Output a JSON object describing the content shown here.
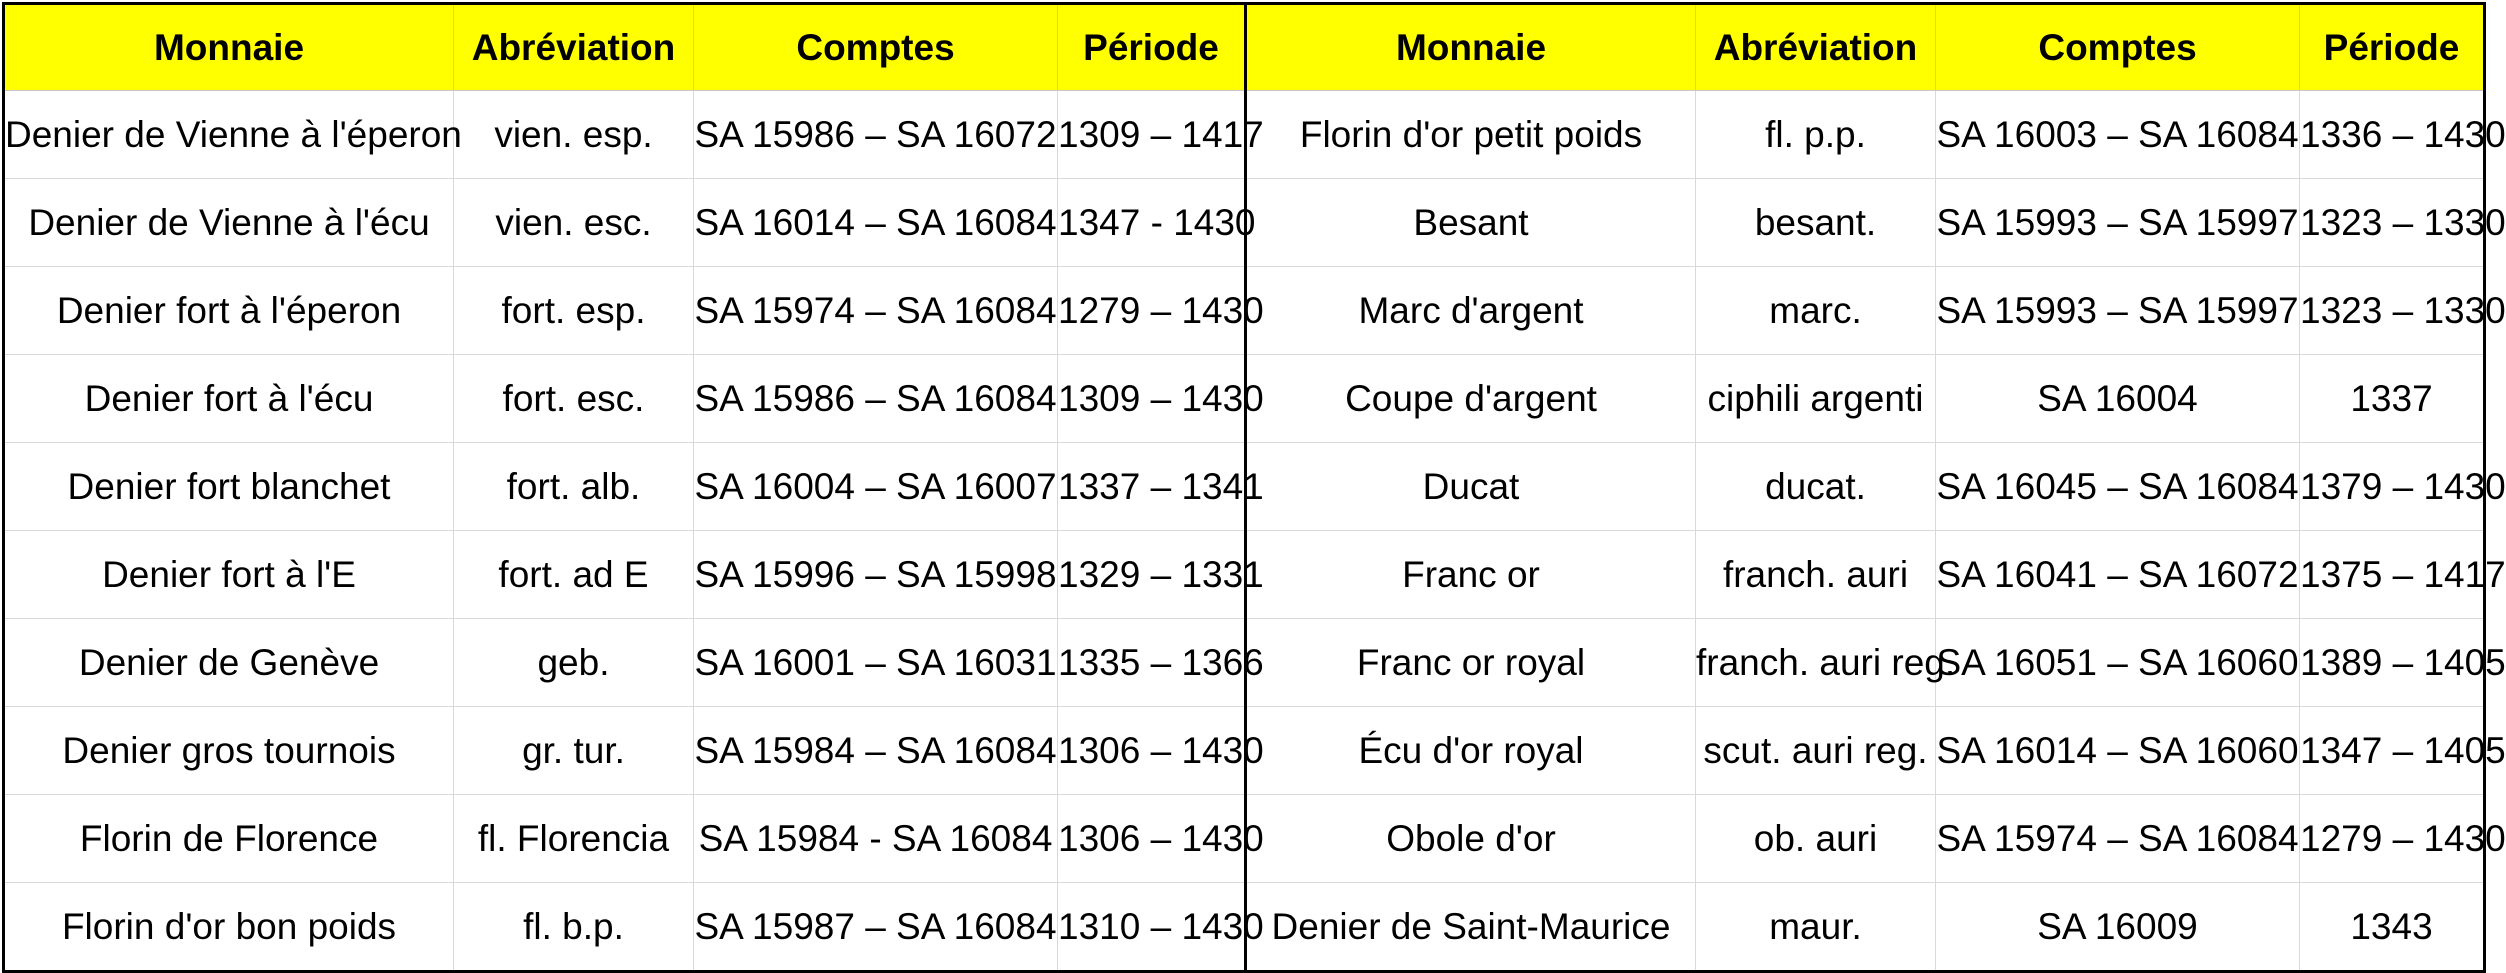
{
  "header_color": "#ffff00",
  "headers": [
    "Monnaie",
    "Abréviation",
    "Comptes",
    "Période",
    "Monnaie",
    "Abréviation",
    "Comptes",
    "Période"
  ],
  "rows": [
    [
      "Denier de Vienne à l'éperon",
      "vien. esp.",
      "SA 15986 – SA 16072",
      "1309 – 1417",
      "Florin d'or petit poids",
      "fl. p.p.",
      "SA 16003 – SA 16084",
      "1336 – 1430"
    ],
    [
      "Denier de Vienne à l'écu",
      "vien. esc.",
      "SA 16014 – SA 16084",
      "1347 - 1430",
      "Besant",
      "besant.",
      "SA 15993 – SA 15997",
      "1323 – 1330"
    ],
    [
      "Denier fort à l'éperon",
      "fort. esp.",
      "SA 15974 – SA 16084",
      "1279 – 1430",
      "Marc d'argent",
      "marc.",
      "SA 15993 – SA 15997",
      "1323 – 1330"
    ],
    [
      "Denier fort à l'écu",
      "fort. esc.",
      "SA 15986 – SA 16084",
      "1309 – 1430",
      "Coupe d'argent",
      "ciphili argenti",
      "SA 16004",
      "1337"
    ],
    [
      "Denier fort blanchet",
      "fort. alb.",
      "SA 16004 – SA 16007",
      "1337 – 1341",
      "Ducat",
      "ducat.",
      "SA 16045 – SA 16084",
      "1379 – 1430"
    ],
    [
      "Denier fort à l'E",
      "fort. ad E",
      "SA 15996 – SA 15998",
      "1329 – 1331",
      "Franc or",
      "franch. auri",
      "SA 16041 – SA 16072",
      "1375 – 1417"
    ],
    [
      "Denier de Genève",
      "geb.",
      "SA 16001 – SA 16031",
      "1335 – 1366",
      "Franc or royal",
      "franch. auri reg.",
      "SA 16051 – SA 16060",
      "1389 – 1405"
    ],
    [
      "Denier gros tournois",
      "gr. tur.",
      "SA 15984 – SA 16084",
      "1306 – 1430",
      "Écu d'or royal",
      "scut. auri reg.",
      "SA 16014 – SA 16060",
      "1347 – 1405"
    ],
    [
      "Florin de Florence",
      "fl. Florencia",
      "SA 15984 - SA 16084",
      "1306 – 1430",
      "Obole d'or",
      "ob. auri",
      "SA 15974 – SA 16084",
      "1279 – 1430"
    ],
    [
      "Florin d'or bon poids",
      "fl. b.p.",
      "SA 15987 – SA 16084",
      "1310 – 1430",
      "Denier de Saint-Maurice",
      "maur.",
      "SA 16009",
      "1343"
    ]
  ]
}
